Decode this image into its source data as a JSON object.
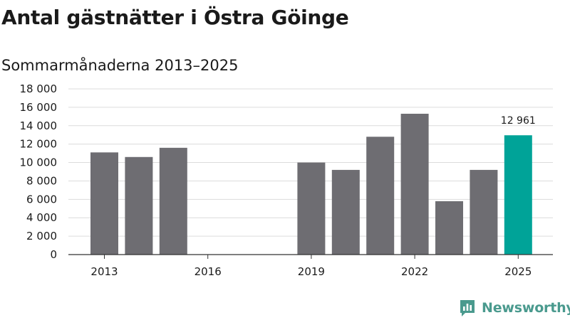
{
  "title": "Antal gästnätter i Östra Göinge",
  "subtitle": "Sommarmånaderna 2013–2025",
  "brand": {
    "name": "Newsworthy",
    "color": "#4a9a8e",
    "icon": "newsworthy-logo-icon"
  },
  "colors": {
    "bar": "#6e6d72",
    "highlight": "#00a398",
    "grid": "#dcdcdc",
    "axis": "#333333"
  },
  "chart_data": {
    "type": "bar",
    "categories": [
      "2013",
      "2014",
      "2015",
      "2016",
      "2017",
      "2018",
      "2019",
      "2020",
      "2021",
      "2022",
      "2023",
      "2024",
      "2025"
    ],
    "values": [
      11100,
      10600,
      11600,
      null,
      null,
      null,
      10000,
      9200,
      12800,
      15300,
      5800,
      9200,
      12961
    ],
    "x_tick_labels": [
      "2013",
      "2016",
      "2019",
      "2022",
      "2025"
    ],
    "y_ticks": [
      0,
      2000,
      4000,
      6000,
      8000,
      10000,
      12000,
      14000,
      16000,
      18000
    ],
    "y_tick_labels": [
      "0",
      "2 000",
      "4 000",
      "6 000",
      "8 000",
      "10 000",
      "12 000",
      "14 000",
      "16 000",
      "18 000"
    ],
    "ylim": [
      0,
      18000
    ],
    "highlight_category": "2025",
    "annotation": {
      "category": "2025",
      "text": "12 961"
    },
    "grid": true,
    "xlabel": "",
    "ylabel": ""
  }
}
